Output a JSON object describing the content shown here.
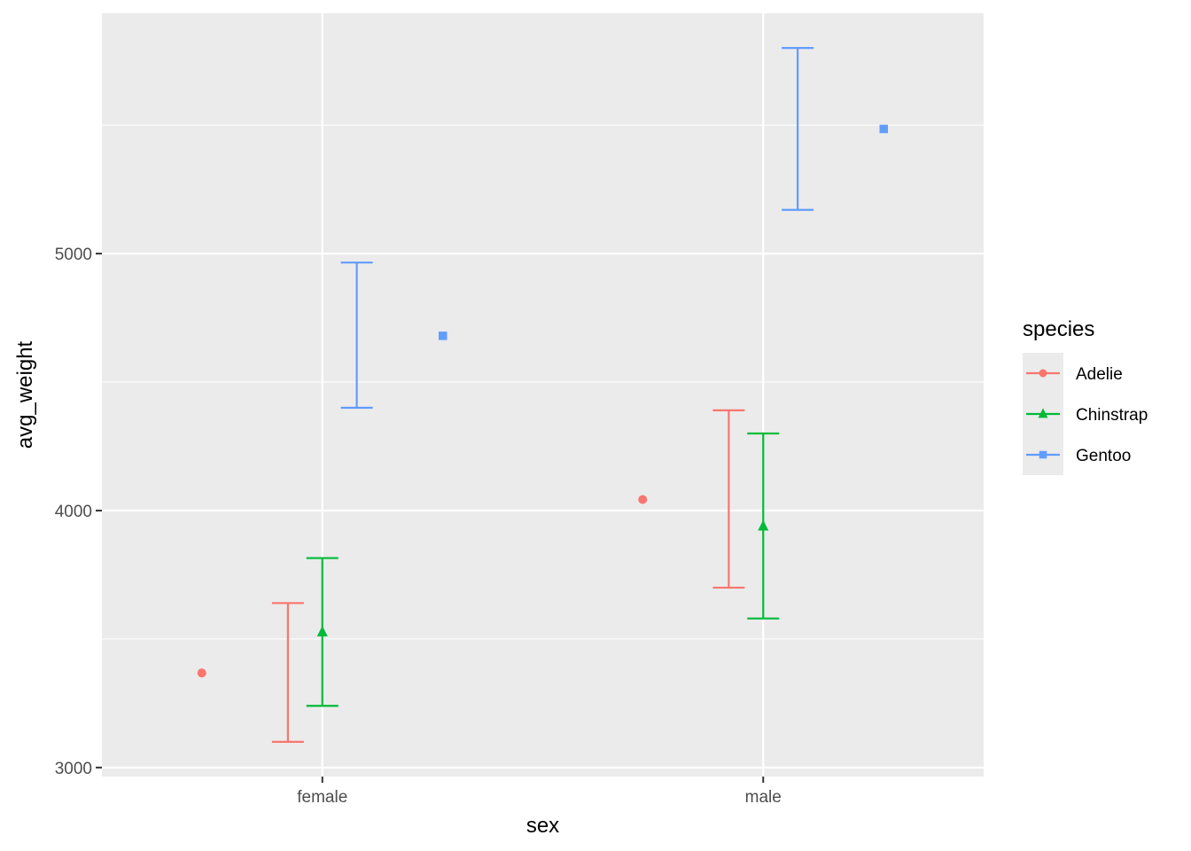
{
  "chart_data": {
    "type": "scatter",
    "xlabel": "sex",
    "ylabel": "avg_weight",
    "categories": [
      "female",
      "male"
    ],
    "ylim": [
      2965,
      5935
    ],
    "y_ticks": [
      3000,
      4000,
      5000
    ],
    "y_minor_ticks": [
      3500,
      4500,
      5500
    ],
    "grid": true,
    "legend": {
      "title": "species",
      "placement": "right"
    },
    "series": [
      {
        "name": "Adelie",
        "color": "#F8766D",
        "shape": "circle",
        "points": [
          {
            "category": "female",
            "mean": 3368,
            "errorbar": [
              3100,
              3640
            ]
          },
          {
            "category": "male",
            "mean": 4043,
            "errorbar": [
              3700,
              4390
            ]
          }
        ]
      },
      {
        "name": "Chinstrap",
        "color": "#00BA38",
        "shape": "triangle",
        "points": [
          {
            "category": "female",
            "mean": 3527,
            "errorbar": [
              3240,
              3815
            ]
          },
          {
            "category": "male",
            "mean": 3939,
            "errorbar": [
              3580,
              4300
            ]
          }
        ]
      },
      {
        "name": "Gentoo",
        "color": "#619CFF",
        "shape": "square",
        "points": [
          {
            "category": "female",
            "mean": 4680,
            "errorbar": [
              4400,
              4965
            ]
          },
          {
            "category": "male",
            "mean": 5485,
            "errorbar": [
              5170,
              5800
            ]
          }
        ]
      }
    ]
  }
}
